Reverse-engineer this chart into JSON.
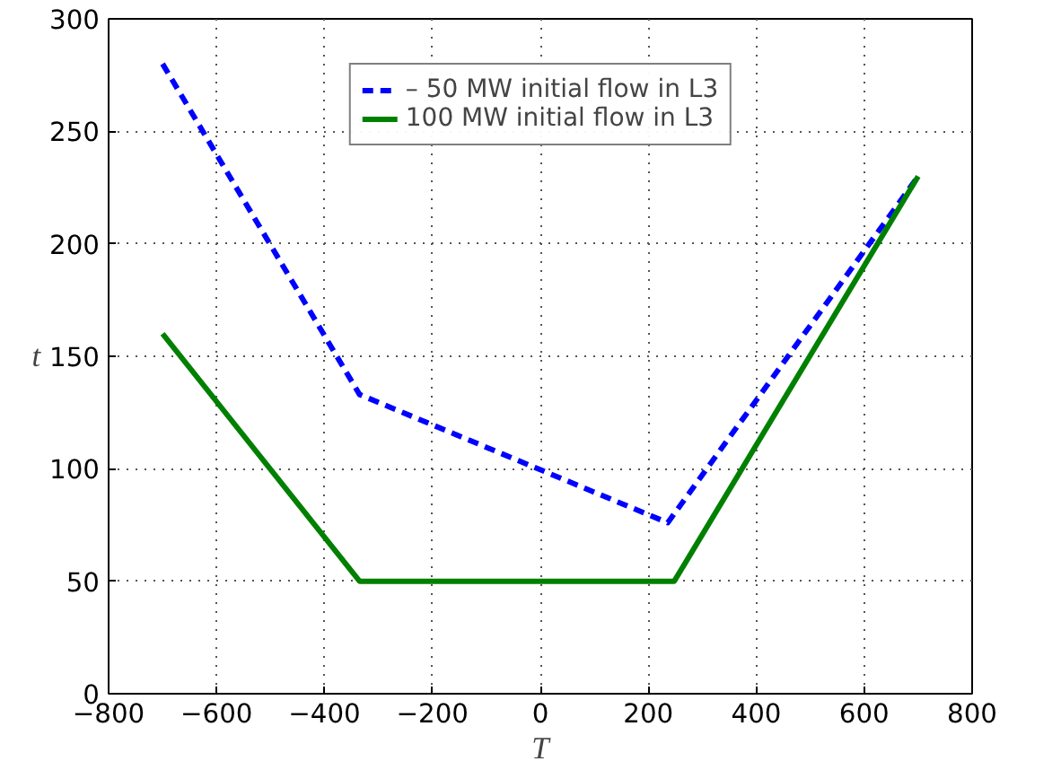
{
  "chart_data": {
    "type": "line",
    "xlabel": "T",
    "ylabel": "t",
    "xlim": [
      -800,
      800
    ],
    "xticks": [
      {
        "value": -800,
        "label": "−800"
      },
      {
        "value": -600,
        "label": "−600"
      },
      {
        "value": -400,
        "label": "−400"
      },
      {
        "value": -200,
        "label": "−200"
      },
      0,
      200,
      400,
      600,
      800
    ],
    "ylim": [
      0,
      300
    ],
    "yticks": [
      0,
      50,
      100,
      150,
      200,
      250,
      300
    ],
    "grid": true,
    "legend": "top",
    "series": [
      {
        "name": "– 50 MW initial flow in L3",
        "color": "#0000ff",
        "line_style": "dashed",
        "x": [
          -700,
          -335,
          236,
          700
        ],
        "values": [
          280,
          133,
          76,
          230
        ]
      },
      {
        "name": "100 MW initial flow in L3",
        "color": "#008000",
        "line_style": "solid",
        "x": [
          -700,
          -335,
          248,
          700
        ],
        "values": [
          160,
          50,
          50,
          230
        ]
      }
    ]
  }
}
